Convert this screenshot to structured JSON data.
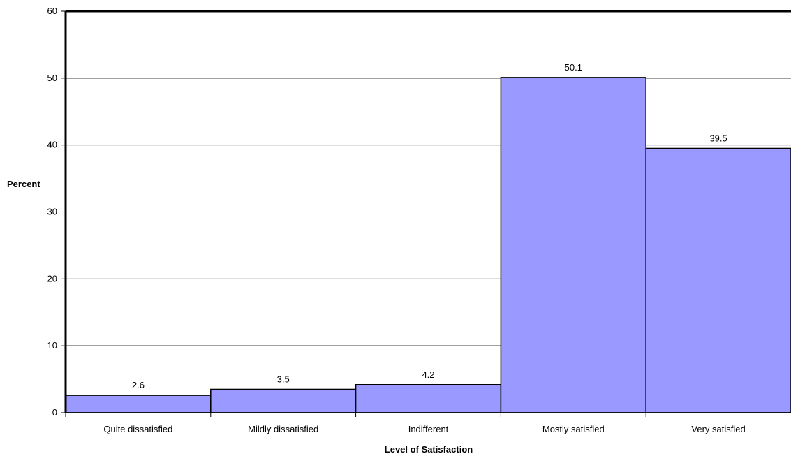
{
  "chart_data": {
    "type": "bar",
    "categories": [
      "Quite dissatisfied",
      "Mildly dissatisfied",
      "Indifferent",
      "Mostly satisfied",
      "Very satisfied"
    ],
    "values": [
      2.6,
      3.5,
      4.2,
      50.1,
      39.5
    ],
    "data_labels": [
      "2.6",
      "3.5",
      "4.2",
      "50.1",
      "39.5"
    ],
    "title": "",
    "xlabel": "Level of Satisfaction",
    "ylabel": "Percent",
    "ylim": [
      0,
      60
    ],
    "yticks": [
      0,
      10,
      20,
      30,
      40,
      50,
      60
    ],
    "grid": true,
    "legend": "none",
    "colors": {
      "bar_fill": "#9999ff",
      "bar_stroke": "#000000",
      "grid": "#000000",
      "axis": "#000000"
    }
  }
}
